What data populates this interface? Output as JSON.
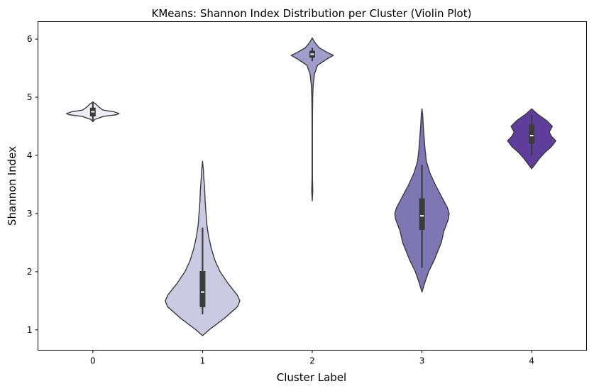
{
  "chart_data": {
    "type": "violin",
    "title": "KMeans: Shannon Index Distribution per Cluster (Violin Plot)",
    "xlabel": "Cluster Label",
    "ylabel": "Shannon Index",
    "categories": [
      "0",
      "1",
      "2",
      "3",
      "4"
    ],
    "yticks": [
      1,
      2,
      3,
      4,
      5,
      6
    ],
    "ylim": [
      0.65,
      6.3
    ],
    "grid": false,
    "outline_color": "#3b3b3b",
    "median_color": "#ffffff",
    "violins": [
      {
        "category": "0",
        "fill": "#efedf5",
        "min": 4.58,
        "max": 4.92,
        "q1": 4.67,
        "median": 4.75,
        "q3": 4.82,
        "whisker_low": 4.58,
        "whisker_high": 4.92,
        "profile": [
          [
            4.58,
            0.0
          ],
          [
            4.62,
            0.05
          ],
          [
            4.67,
            0.24
          ],
          [
            4.7,
            0.54
          ],
          [
            4.72,
            0.6
          ],
          [
            4.75,
            0.48
          ],
          [
            4.78,
            0.23
          ],
          [
            4.83,
            0.14
          ],
          [
            4.88,
            0.07
          ],
          [
            4.92,
            0.0
          ]
        ]
      },
      {
        "category": "1",
        "fill": "#cacae2",
        "min": 0.9,
        "max": 3.9,
        "q1": 1.39,
        "median": 1.65,
        "q3": 2.01,
        "whisker_low": 1.27,
        "whisker_high": 2.76,
        "profile": [
          [
            0.9,
            0.0
          ],
          [
            1.0,
            0.15
          ],
          [
            1.2,
            0.5
          ],
          [
            1.4,
            0.8
          ],
          [
            1.5,
            0.85
          ],
          [
            1.6,
            0.79
          ],
          [
            1.8,
            0.58
          ],
          [
            2.0,
            0.4
          ],
          [
            2.2,
            0.28
          ],
          [
            2.4,
            0.2
          ],
          [
            2.6,
            0.14
          ],
          [
            2.8,
            0.1
          ],
          [
            3.0,
            0.08
          ],
          [
            3.2,
            0.06
          ],
          [
            3.4,
            0.05
          ],
          [
            3.6,
            0.03
          ],
          [
            3.75,
            0.02
          ],
          [
            3.9,
            0.0
          ]
        ]
      },
      {
        "category": "2",
        "fill": "#a19dcb",
        "min": 3.22,
        "max": 6.02,
        "q1": 5.68,
        "median": 5.74,
        "q3": 5.8,
        "whisker_low": 5.62,
        "whisker_high": 5.85,
        "profile": [
          [
            3.22,
            0.0
          ],
          [
            3.4,
            0.012
          ],
          [
            3.6,
            0.004
          ],
          [
            3.9,
            0.004
          ],
          [
            4.3,
            0.004
          ],
          [
            4.7,
            0.005
          ],
          [
            5.0,
            0.01
          ],
          [
            5.2,
            0.02
          ],
          [
            5.4,
            0.05
          ],
          [
            5.55,
            0.12
          ],
          [
            5.65,
            0.32
          ],
          [
            5.72,
            0.48
          ],
          [
            5.78,
            0.32
          ],
          [
            5.85,
            0.16
          ],
          [
            5.92,
            0.08
          ],
          [
            5.98,
            0.03
          ],
          [
            6.02,
            0.0
          ]
        ]
      },
      {
        "category": "3",
        "fill": "#7f77b4",
        "min": 1.65,
        "max": 4.8,
        "q1": 2.72,
        "median": 2.96,
        "q3": 3.26,
        "whisker_low": 2.07,
        "whisker_high": 3.84,
        "profile": [
          [
            1.65,
            0.0
          ],
          [
            1.8,
            0.06
          ],
          [
            2.0,
            0.15
          ],
          [
            2.2,
            0.28
          ],
          [
            2.5,
            0.44
          ],
          [
            2.7,
            0.5
          ],
          [
            2.9,
            0.6
          ],
          [
            3.0,
            0.62
          ],
          [
            3.1,
            0.58
          ],
          [
            3.3,
            0.44
          ],
          [
            3.5,
            0.3
          ],
          [
            3.7,
            0.18
          ],
          [
            3.9,
            0.1
          ],
          [
            4.1,
            0.07
          ],
          [
            4.3,
            0.05
          ],
          [
            4.5,
            0.03
          ],
          [
            4.7,
            0.015
          ],
          [
            4.8,
            0.0
          ]
        ]
      },
      {
        "category": "4",
        "fill": "#5f3e9b",
        "min": 3.77,
        "max": 4.8,
        "q1": 4.2,
        "median": 4.34,
        "q3": 4.53,
        "whisker_low": 4.0,
        "whisker_high": 4.7,
        "profile": [
          [
            3.77,
            0.0
          ],
          [
            3.85,
            0.08
          ],
          [
            3.95,
            0.18
          ],
          [
            4.05,
            0.3
          ],
          [
            4.15,
            0.45
          ],
          [
            4.25,
            0.55
          ],
          [
            4.33,
            0.45
          ],
          [
            4.4,
            0.4
          ],
          [
            4.5,
            0.47
          ],
          [
            4.6,
            0.34
          ],
          [
            4.7,
            0.15
          ],
          [
            4.8,
            0.0
          ]
        ]
      }
    ]
  }
}
